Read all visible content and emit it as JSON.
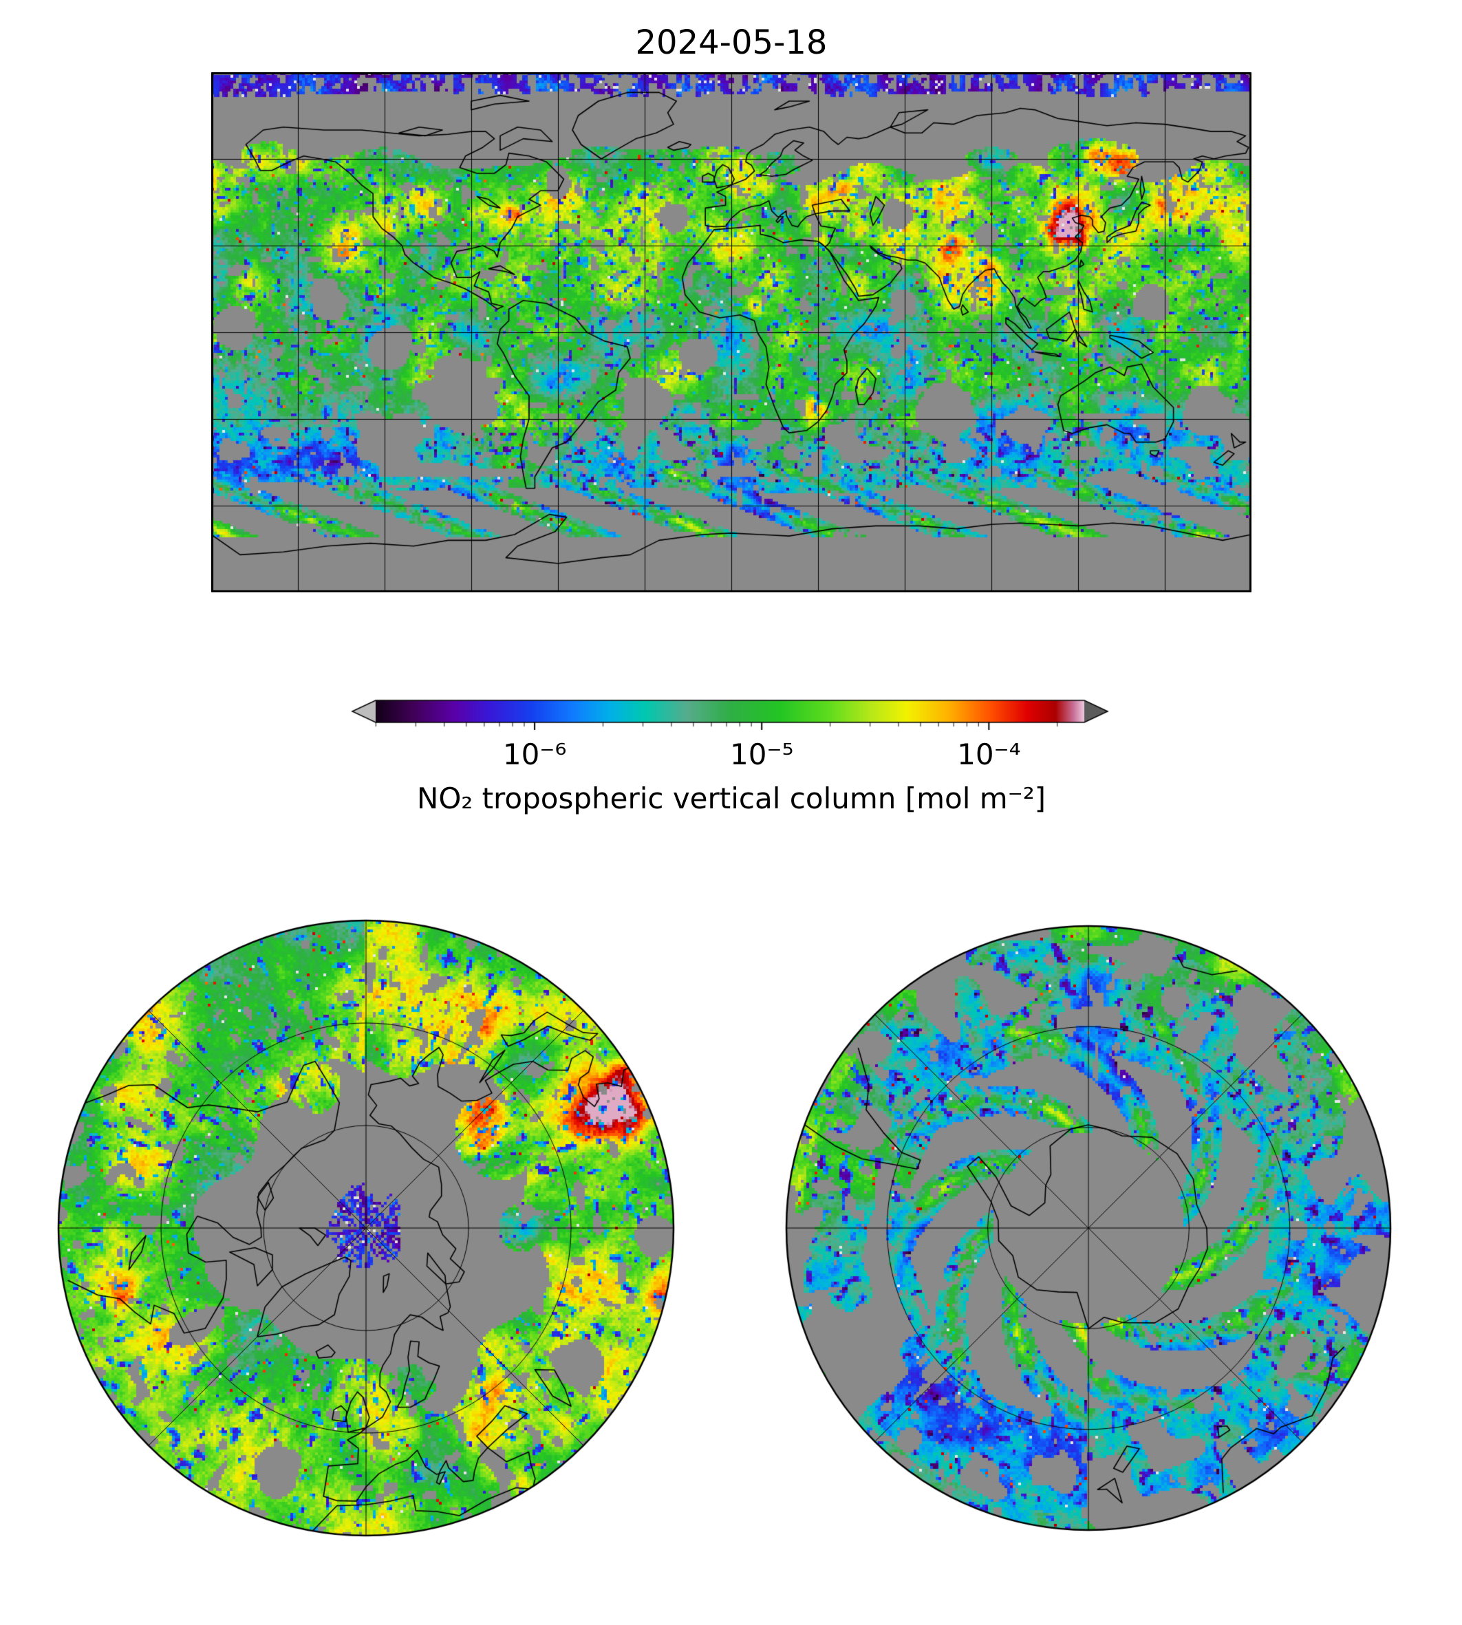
{
  "chart_data": {
    "type": "heatmap",
    "title": "2024-05-18",
    "variable": "NO₂ tropospheric vertical column",
    "units": "mol m⁻²",
    "colorbar": {
      "scale": "log",
      "label": "NO₂ tropospheric vertical column [mol m⁻²]",
      "tick_labels": [
        "10⁻⁶",
        "10⁻⁵",
        "10⁻⁴"
      ],
      "tick_values": [
        1e-06,
        1e-05,
        0.0001
      ],
      "range_exponents": [
        -6.7,
        -3.58
      ],
      "extend": "both"
    },
    "panels": [
      {
        "id": "global",
        "projection": "equirectangular"
      },
      {
        "id": "north-polar",
        "projection": "north-polar-azimuthal"
      },
      {
        "id": "south-polar",
        "projection": "south-polar-azimuthal"
      }
    ],
    "colormap": {
      "nodata_color": "#8a8a8a",
      "under_color": "#bdbdbd",
      "over_color": "#5c5c5c",
      "stops": [
        {
          "t": 0.0,
          "color": "#120018"
        },
        {
          "t": 0.05,
          "color": "#3f0054"
        },
        {
          "t": 0.11,
          "color": "#5a00a8"
        },
        {
          "t": 0.16,
          "color": "#3818d8"
        },
        {
          "t": 0.22,
          "color": "#1540f0"
        },
        {
          "t": 0.28,
          "color": "#0f7dff"
        },
        {
          "t": 0.33,
          "color": "#00b0e8"
        },
        {
          "t": 0.38,
          "color": "#00c8b0"
        },
        {
          "t": 0.44,
          "color": "#56ab8c"
        },
        {
          "t": 0.5,
          "color": "#2fae46"
        },
        {
          "t": 0.57,
          "color": "#23c523"
        },
        {
          "t": 0.64,
          "color": "#5fdc1e"
        },
        {
          "t": 0.7,
          "color": "#b8e818"
        },
        {
          "t": 0.75,
          "color": "#f2f200"
        },
        {
          "t": 0.81,
          "color": "#ffb000"
        },
        {
          "t": 0.87,
          "color": "#ff4d00"
        },
        {
          "t": 0.92,
          "color": "#e00000"
        },
        {
          "t": 0.96,
          "color": "#ab0000"
        },
        {
          "t": 0.985,
          "color": "#c86e96"
        },
        {
          "t": 1.0,
          "color": "#ecc8dc"
        }
      ]
    }
  }
}
